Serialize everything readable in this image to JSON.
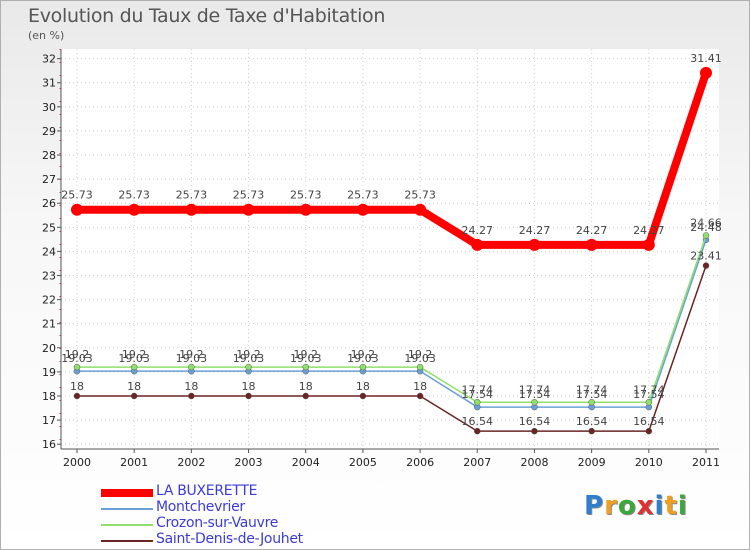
{
  "header": {
    "title": "Evolution du Taux de Taxe d'Habitation",
    "subtitle": "(en %)"
  },
  "colors": {
    "LA BUXERETTE": "#ff0000",
    "Montchevrier": "#6aa0d8",
    "Crozon-sur-Vauvre": "#8ee06a",
    "Saint-Denis-de-Jouhet": "#6b2424"
  },
  "chart_data": {
    "type": "line",
    "title": "Evolution du Taux de Taxe d'Habitation",
    "ylabel": "(en %)",
    "xlabel": "",
    "ylim": [
      15.8,
      32.4
    ],
    "yticks": [
      16,
      17,
      18,
      19,
      20,
      21,
      22,
      23,
      24,
      25,
      26,
      27,
      28,
      29,
      30,
      31,
      32
    ],
    "categories": [
      "2000",
      "2001",
      "2002",
      "2003",
      "2004",
      "2005",
      "2006",
      "2007",
      "2008",
      "2009",
      "2010",
      "2011"
    ],
    "series": [
      {
        "name": "LA BUXERETTE",
        "values": [
          25.73,
          25.73,
          25.73,
          25.73,
          25.73,
          25.73,
          25.73,
          24.27,
          24.27,
          24.27,
          24.27,
          31.41
        ],
        "labels": [
          "25.73",
          "25.73",
          "25.73",
          "25.73",
          "25.73",
          "25.73",
          "25.73",
          "24.27",
          "24.27",
          "24.27",
          "24.27",
          "31.41"
        ]
      },
      {
        "name": "Montchevrier",
        "values": [
          19.03,
          19.03,
          19.03,
          19.03,
          19.03,
          19.03,
          19.03,
          17.54,
          17.54,
          17.54,
          17.54,
          24.48
        ],
        "labels": [
          "19.03",
          "19.03",
          "19.03",
          "19.03",
          "19.03",
          "19.03",
          "19.03",
          "17.54",
          "17.54",
          "17.54",
          "17.54",
          "24.48"
        ]
      },
      {
        "name": "Crozon-sur-Vauvre",
        "values": [
          19.2,
          19.2,
          19.2,
          19.2,
          19.2,
          19.2,
          19.2,
          17.74,
          17.74,
          17.74,
          17.74,
          24.66
        ],
        "labels": [
          "19.2",
          "19.2",
          "19.2",
          "19.2",
          "19.2",
          "19.2",
          "19.2",
          "17.74",
          "17.74",
          "17.74",
          "17.74",
          "24.66"
        ]
      },
      {
        "name": "Saint-Denis-de-Jouhet",
        "values": [
          18,
          18,
          18,
          18,
          18,
          18,
          18,
          16.54,
          16.54,
          16.54,
          16.54,
          23.41
        ],
        "labels": [
          "18",
          "18",
          "18",
          "18",
          "18",
          "18",
          "18",
          "16.54",
          "16.54",
          "16.54",
          "16.54",
          "23.41"
        ]
      }
    ],
    "legend": [
      "LA BUXERETTE",
      "Montchevrier",
      "Crozon-sur-Vauvre",
      "Saint-Denis-de-Jouhet"
    ],
    "legend_position": "bottom-left"
  },
  "logo": {
    "letters": [
      "P",
      "r",
      "o",
      "x",
      "i",
      "t",
      "i"
    ]
  }
}
